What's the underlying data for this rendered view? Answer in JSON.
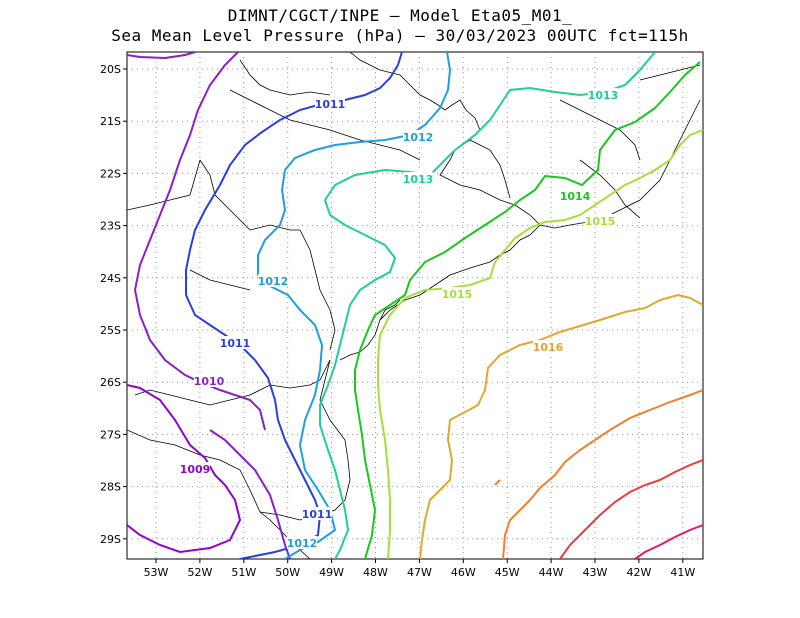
{
  "title_line1": "DIMNT/CGCT/INPE –  Model Eta05_M01_",
  "title_line2": "Sea Mean Level Pressure (hPa) – 30/03/2023 00UTC fct=115h",
  "lat_ticks": [
    "20S",
    "21S",
    "22S",
    "23S",
    "24S",
    "25S",
    "26S",
    "27S",
    "28S",
    "29S"
  ],
  "lon_ticks": [
    "53W",
    "52W",
    "51W",
    "50W",
    "49W",
    "48W",
    "47W",
    "46W",
    "45W",
    "44W",
    "43W",
    "42W",
    "41W"
  ],
  "contours": [
    {
      "level": "1009",
      "color": "#9400d3"
    },
    {
      "level": "1010",
      "color": "#8a1fc8"
    },
    {
      "level": "1011",
      "color": "#2b3fdc"
    },
    {
      "level": "1012",
      "color": "#1e9fe0"
    },
    {
      "level": "1013",
      "color": "#1fcf9a"
    },
    {
      "level": "1014",
      "color": "#19c81e"
    },
    {
      "level": "1015",
      "color": "#a5e03a"
    },
    {
      "level": "1016",
      "color": "#e0a830"
    }
  ],
  "extra_colors": {
    "orange": "#ef7f32",
    "red": "#ef3a3a",
    "magenta": "#e8176e"
  }
}
